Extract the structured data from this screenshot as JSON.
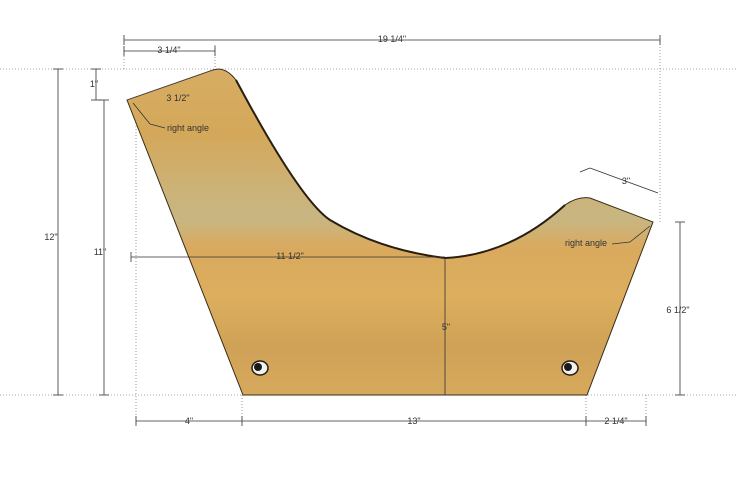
{
  "diagram": {
    "wood_color": "#d8ad62",
    "wood_edge_color": "#3a2c18",
    "dimensions": {
      "overall_width": "19 1/4\"",
      "top_left_width": "3 1/4\"",
      "top_offset": "1\"",
      "back_edge": "3 1/2\"",
      "overall_height": "12\"",
      "left_height": "11\"",
      "seat_span": "11 1/2\"",
      "seat_depth": "5\"",
      "front_edge": "3\"",
      "front_height": "6 1/2\"",
      "bottom_left_inset": "4\"",
      "bottom_width": "13\"",
      "bottom_right_inset": "2 1/4\""
    },
    "annotations": {
      "left_angle": "right angle",
      "right_angle": "right angle"
    }
  }
}
